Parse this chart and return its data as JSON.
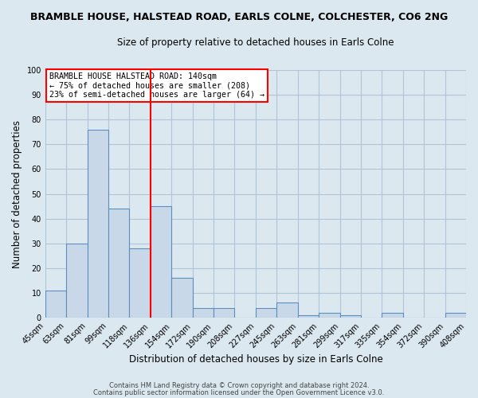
{
  "title1": "BRAMBLE HOUSE, HALSTEAD ROAD, EARLS COLNE, COLCHESTER, CO6 2NG",
  "title2": "Size of property relative to detached houses in Earls Colne",
  "xlabel": "Distribution of detached houses by size in Earls Colne",
  "ylabel": "Number of detached properties",
  "bin_labels": [
    "45sqm",
    "63sqm",
    "81sqm",
    "99sqm",
    "118sqm",
    "136sqm",
    "154sqm",
    "172sqm",
    "190sqm",
    "208sqm",
    "227sqm",
    "245sqm",
    "263sqm",
    "281sqm",
    "299sqm",
    "317sqm",
    "335sqm",
    "354sqm",
    "372sqm",
    "390sqm",
    "408sqm"
  ],
  "bar_heights": [
    11,
    30,
    76,
    44,
    28,
    45,
    16,
    4,
    4,
    0,
    4,
    6,
    1,
    2,
    1,
    0,
    2,
    0,
    0,
    2
  ],
  "bar_color": "#c8d8e8",
  "bar_edge_color": "#5a8fc0",
  "vline_x": 5,
  "vline_color": "red",
  "annotation_text": "BRAMBLE HOUSE HALSTEAD ROAD: 140sqm\n← 75% of detached houses are smaller (208)\n23% of semi-detached houses are larger (64) →",
  "annotation_box_color": "white",
  "annotation_box_edgecolor": "red",
  "ylim": [
    0,
    100
  ],
  "yticks": [
    0,
    10,
    20,
    30,
    40,
    50,
    60,
    70,
    80,
    90,
    100
  ],
  "grid_color": "#b0c4d8",
  "bg_color": "#dce8f0",
  "footer1": "Contains HM Land Registry data © Crown copyright and database right 2024.",
  "footer2": "Contains public sector information licensed under the Open Government Licence v3.0."
}
